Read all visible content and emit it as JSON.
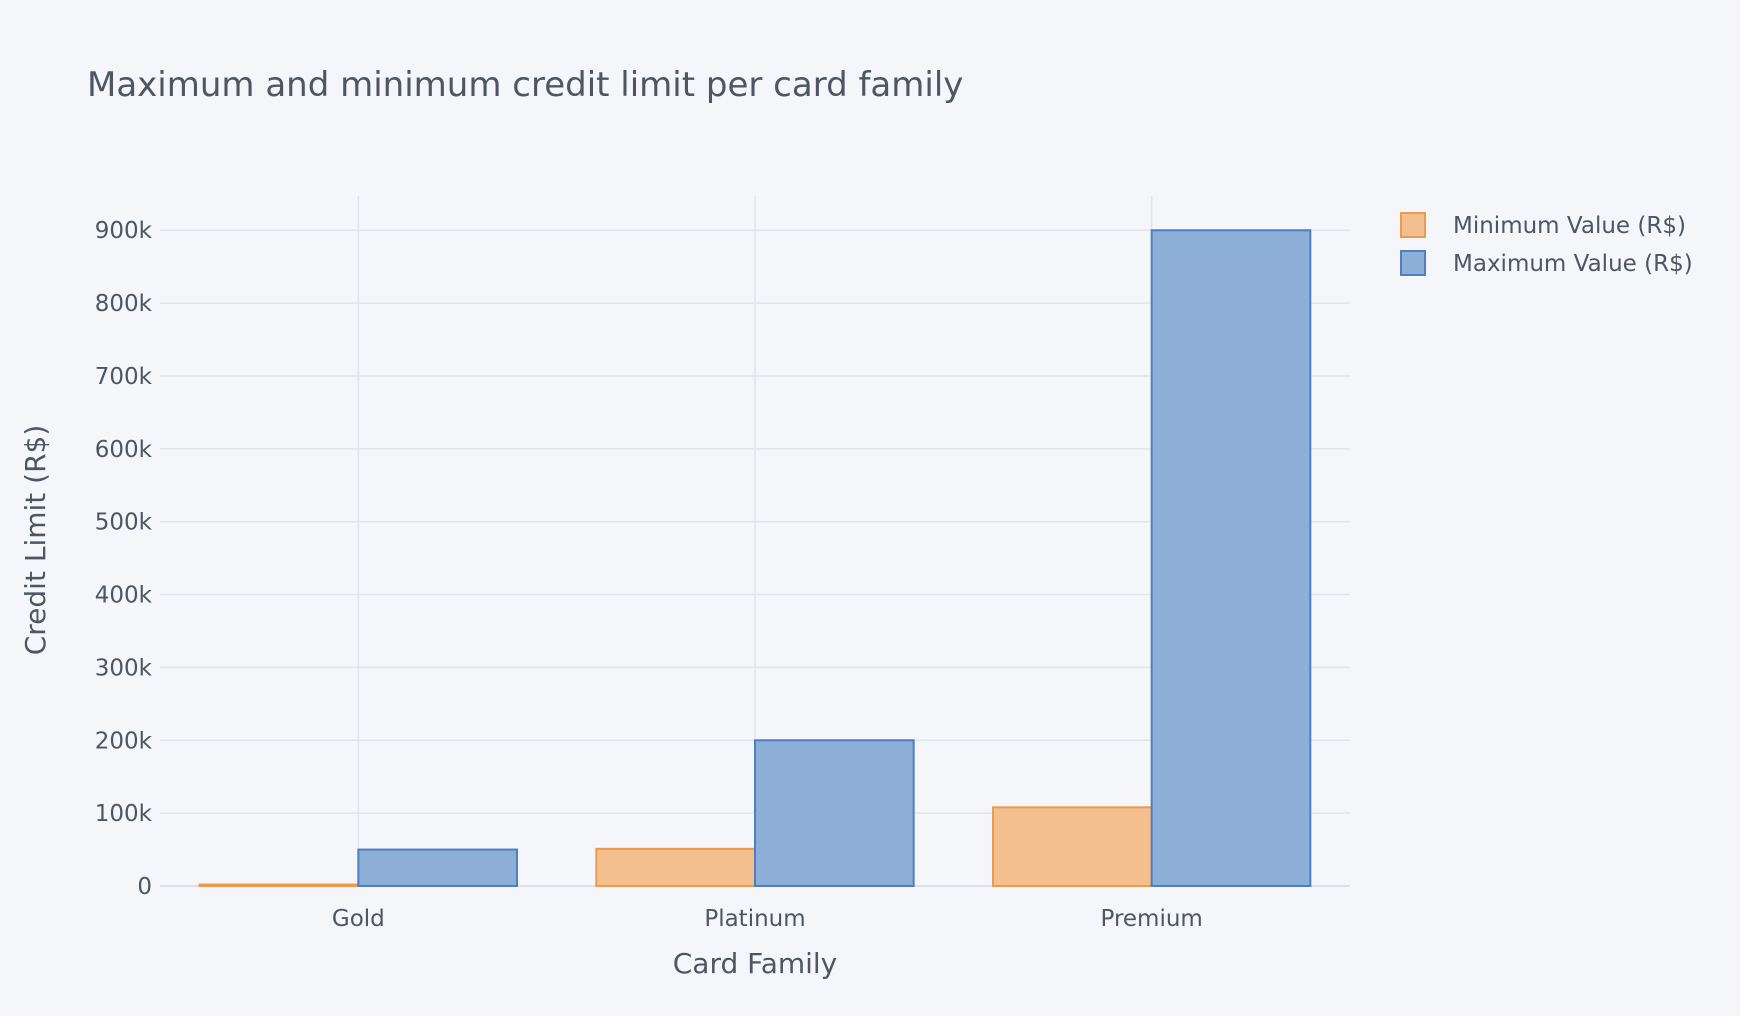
{
  "chart_data": {
    "type": "bar",
    "title": "Maximum and minimum credit limit per card family",
    "xlabel": "Card Family",
    "ylabel": "Credit Limit (R$)",
    "categories": [
      "Gold",
      "Platinum",
      "Premium"
    ],
    "ylim": [
      0,
      947000
    ],
    "yticks": [
      0,
      100000,
      200000,
      300000,
      400000,
      500000,
      600000,
      700000,
      800000,
      900000
    ],
    "ytick_labels": [
      "0",
      "100k",
      "200k",
      "300k",
      "400k",
      "500k",
      "600k",
      "700k",
      "800k",
      "900k"
    ],
    "legend_position": "top-right",
    "grid": true,
    "series": [
      {
        "name": "Minimum Value (R$)",
        "values": [
          2000,
          51000,
          108000
        ],
        "fill": "#f4bf8f",
        "stroke": "#ee9a4e"
      },
      {
        "name": "Maximum Value (R$)",
        "values": [
          50000,
          200000,
          900000
        ],
        "fill": "#8daed6",
        "stroke": "#4e7fbf"
      }
    ]
  }
}
